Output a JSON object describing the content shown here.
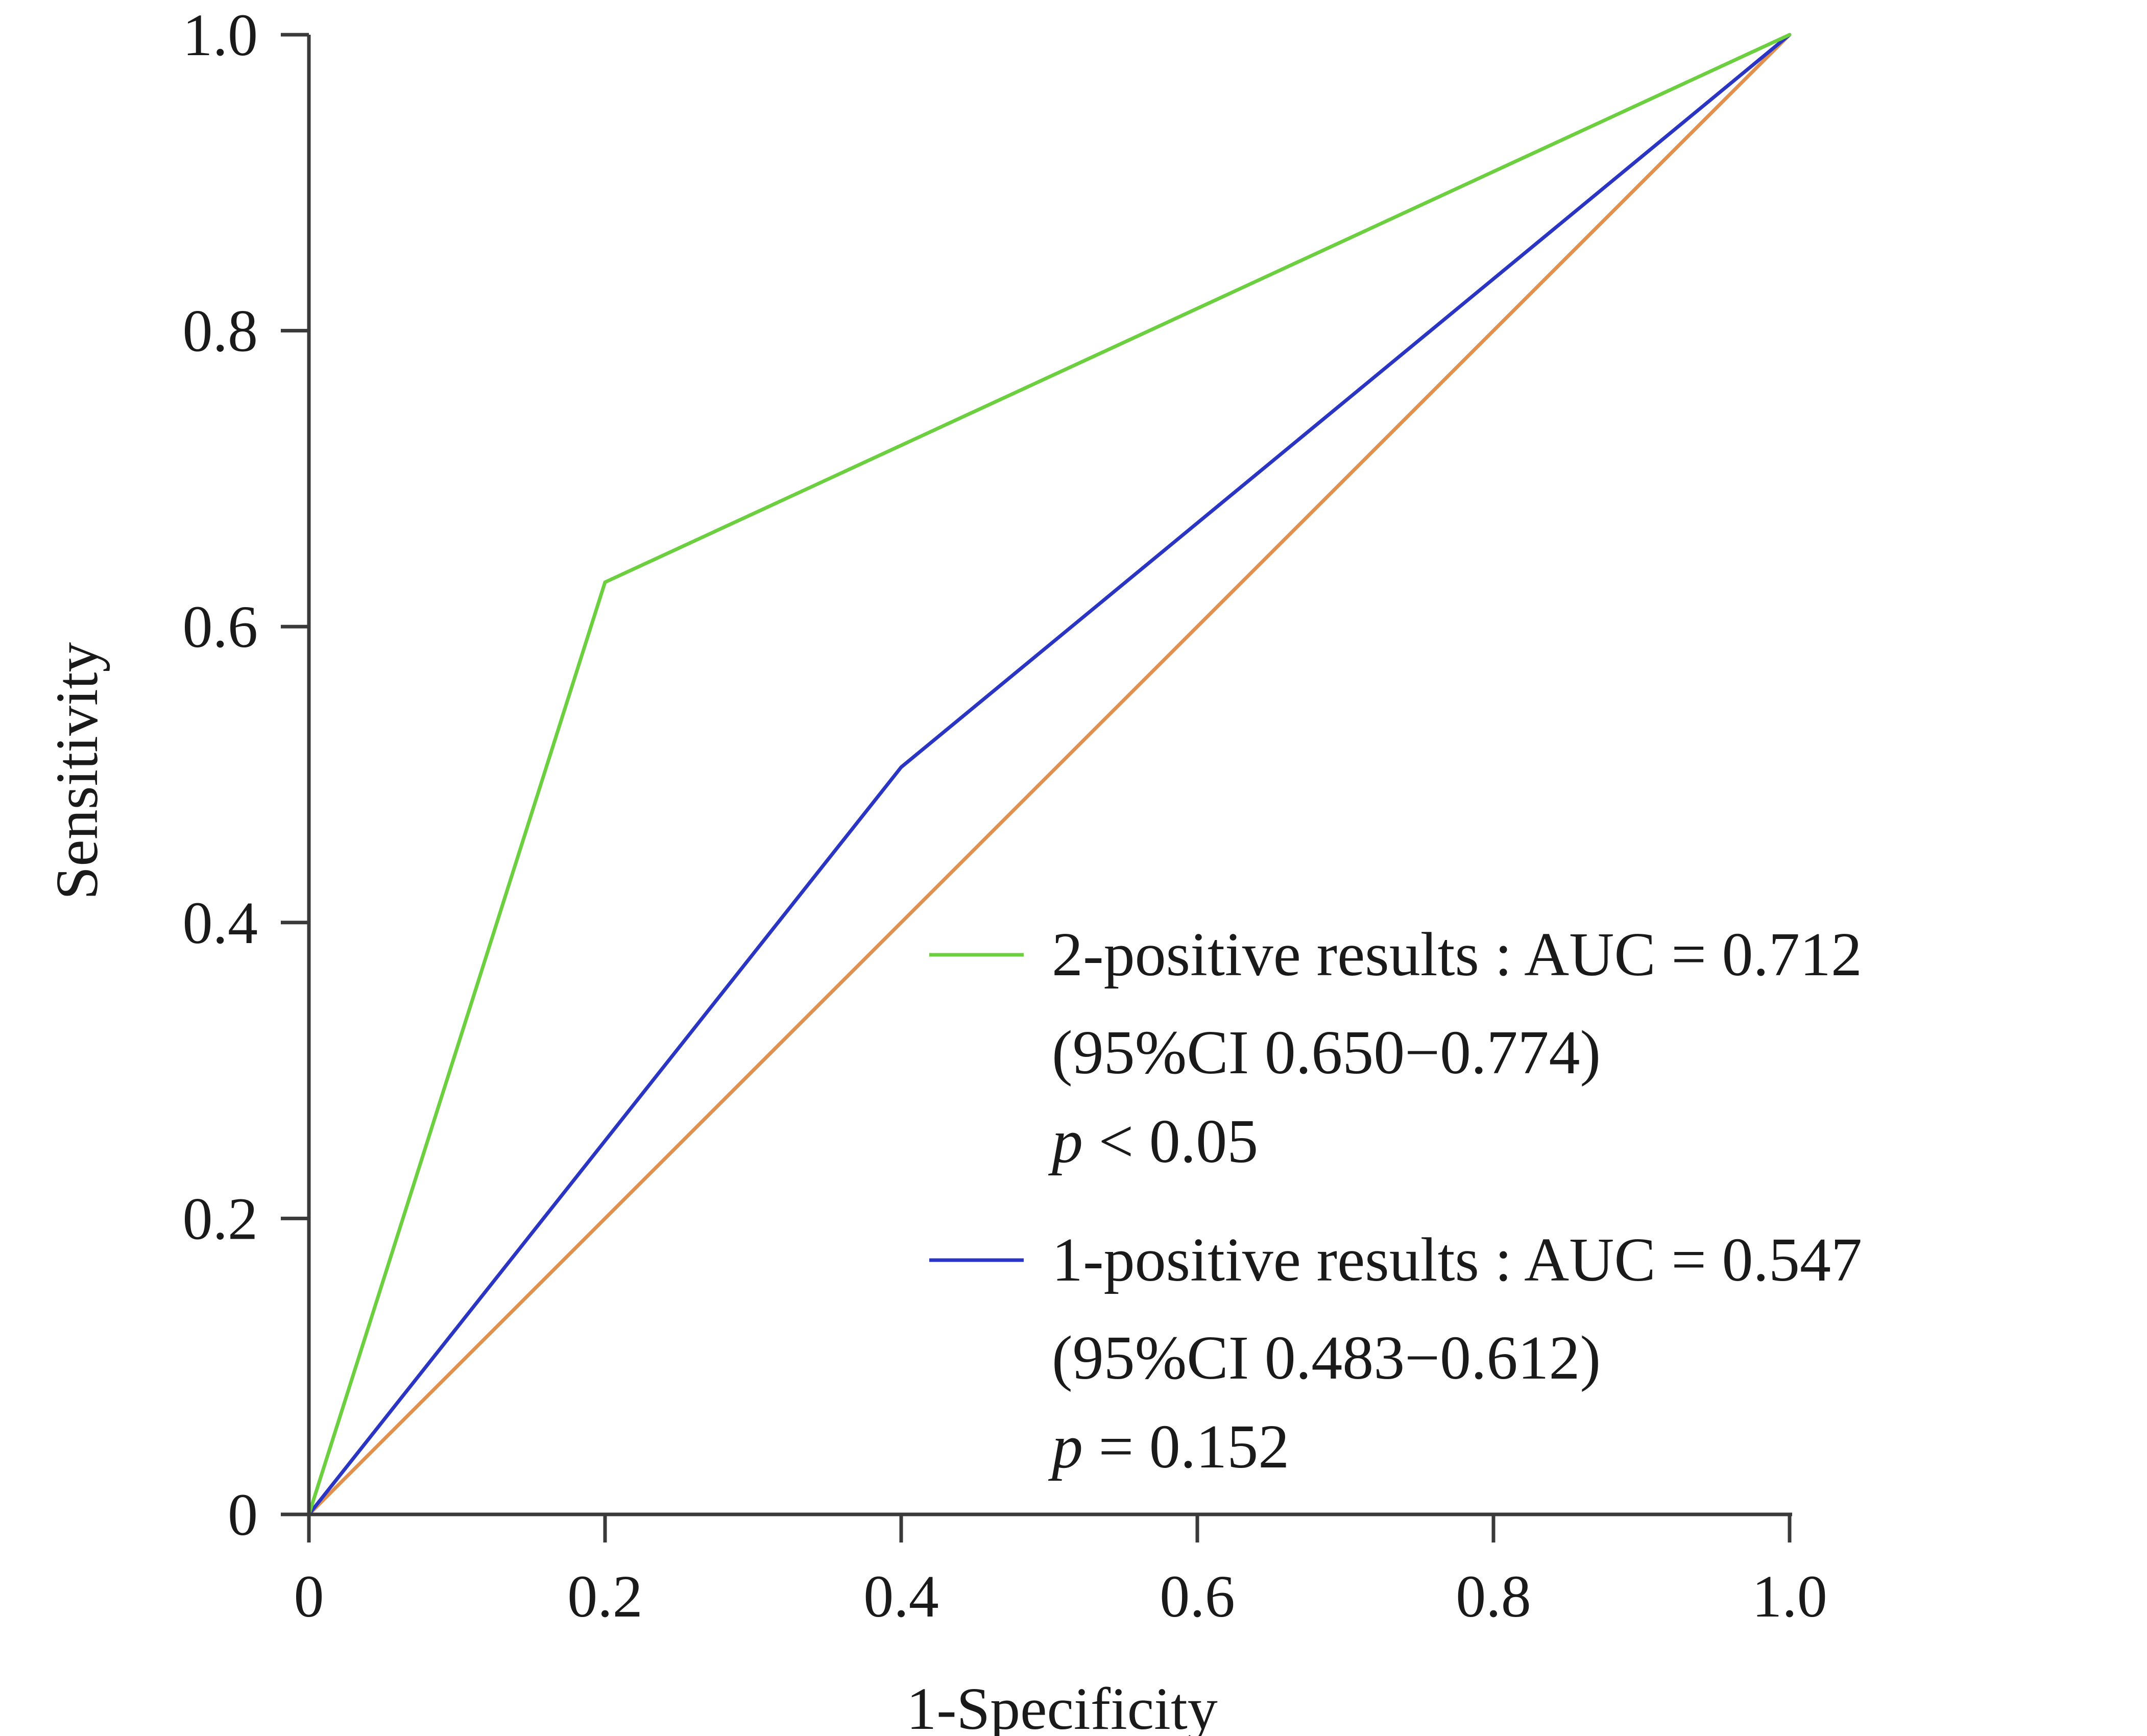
{
  "chart_data": {
    "type": "line",
    "xlabel": "1-Specificity",
    "ylabel": "Sensitivity",
    "xlim": [
      0,
      1
    ],
    "ylim": [
      0,
      1
    ],
    "x_ticks": [
      "0",
      "0.2",
      "0.4",
      "0.6",
      "0.8",
      "1.0"
    ],
    "y_ticks": [
      "0",
      "0.2",
      "0.4",
      "0.6",
      "0.8",
      "1.0"
    ],
    "grid": false,
    "legend_position": "lower-right",
    "series": [
      {
        "name": "2-positive results : AUC = 0.712",
        "color": "#6ccf3f",
        "x": [
          0,
          0.2,
          1.0
        ],
        "y": [
          0,
          0.63,
          1.0
        ],
        "legend_lines": [
          "2-positive results : AUC = 0.712",
          "(95%CI 0.650−0.774)"
        ],
        "p_label": "p",
        "p_value": " < 0.05"
      },
      {
        "name": "1-positive results : AUC = 0.547",
        "color": "#2b35c4",
        "x": [
          0,
          0.4,
          1.0
        ],
        "y": [
          0,
          0.505,
          1.0
        ],
        "legend_lines": [
          "1-positive results : AUC = 0.547",
          "(95%CI 0.483−0.612)"
        ],
        "p_label": "p",
        "p_value": " = 0.152"
      },
      {
        "color": "#e0914f",
        "x": [
          0,
          1.0
        ],
        "y": [
          0,
          1.0
        ]
      }
    ]
  }
}
